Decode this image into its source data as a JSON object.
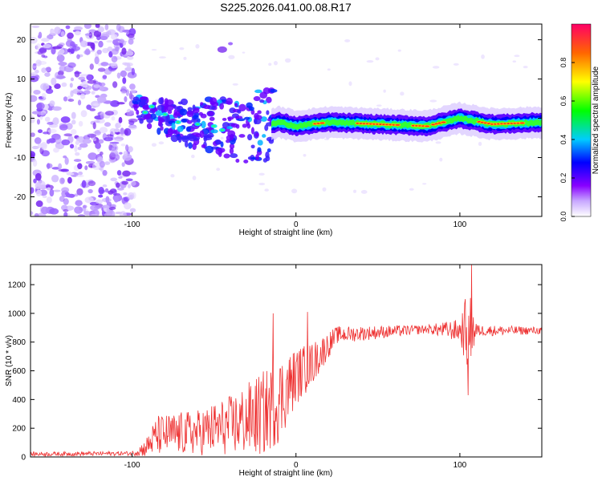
{
  "title": "S225.2026.041.00.08.R17",
  "chart_data": [
    {
      "type": "heatmap",
      "xlabel": "Height of straight line (km)",
      "ylabel": "Frequency (Hz)",
      "xlim": [
        -162,
        150
      ],
      "ylim": [
        -25,
        24
      ],
      "x_ticks": [
        -100,
        0,
        100
      ],
      "y_ticks": [
        -20,
        -10,
        0,
        10,
        20
      ],
      "colorbar": {
        "label": "Normalized spectral amplitude",
        "range": [
          0,
          1
        ],
        "ticks": [
          0.0,
          0.2,
          0.4,
          0.6,
          0.8
        ]
      },
      "ridge": [
        {
          "x": -98,
          "freq": 3
        },
        {
          "x": -85,
          "freq": 1
        },
        {
          "x": -70,
          "freq": -1
        },
        {
          "x": -50,
          "freq": -2
        },
        {
          "x": -30,
          "freq": -3
        },
        {
          "x": -10,
          "freq": -1
        },
        {
          "x": 0,
          "freq": -2
        },
        {
          "x": 20,
          "freq": -1
        },
        {
          "x": 50,
          "freq": -1.5
        },
        {
          "x": 80,
          "freq": -2
        },
        {
          "x": 100,
          "freq": 0
        },
        {
          "x": 120,
          "freq": -1.5
        },
        {
          "x": 150,
          "freq": -1
        }
      ]
    },
    {
      "type": "line",
      "xlabel": "Height of straight line (km)",
      "ylabel": "SNR (10 * v/v)",
      "xlim": [
        -162,
        150
      ],
      "ylim": [
        0,
        1340
      ],
      "x_ticks": [
        -100,
        0,
        100
      ],
      "y_ticks": [
        0,
        200,
        400,
        600,
        800,
        1000,
        1200
      ],
      "series": [
        {
          "name": "SNR",
          "color": "#ee3333",
          "envelope": [
            {
              "x": -162,
              "mean": 20,
              "amp": 15
            },
            {
              "x": -100,
              "mean": 25,
              "amp": 15
            },
            {
              "x": -92,
              "mean": 60,
              "amp": 60
            },
            {
              "x": -85,
              "mean": 150,
              "amp": 140
            },
            {
              "x": -60,
              "mean": 170,
              "amp": 160
            },
            {
              "x": -40,
              "mean": 220,
              "amp": 210
            },
            {
              "x": -20,
              "mean": 300,
              "amp": 300
            },
            {
              "x": -10,
              "mean": 400,
              "amp": 300
            },
            {
              "x": 0,
              "mean": 560,
              "amp": 200
            },
            {
              "x": 10,
              "mean": 650,
              "amp": 150
            },
            {
              "x": 25,
              "mean": 850,
              "amp": 60
            },
            {
              "x": 80,
              "mean": 890,
              "amp": 30
            },
            {
              "x": 100,
              "mean": 880,
              "amp": 80
            },
            {
              "x": 105,
              "mean": 880,
              "amp": 300
            },
            {
              "x": 111,
              "mean": 880,
              "amp": 40
            },
            {
              "x": 150,
              "mean": 880,
              "amp": 25
            }
          ],
          "peaks": [
            {
              "x": -14,
              "y": 1000
            },
            {
              "x": 7,
              "y": 1010
            },
            {
              "x": 107,
              "y": 1340
            },
            {
              "x": 105,
              "y": 430
            }
          ]
        }
      ]
    }
  ]
}
